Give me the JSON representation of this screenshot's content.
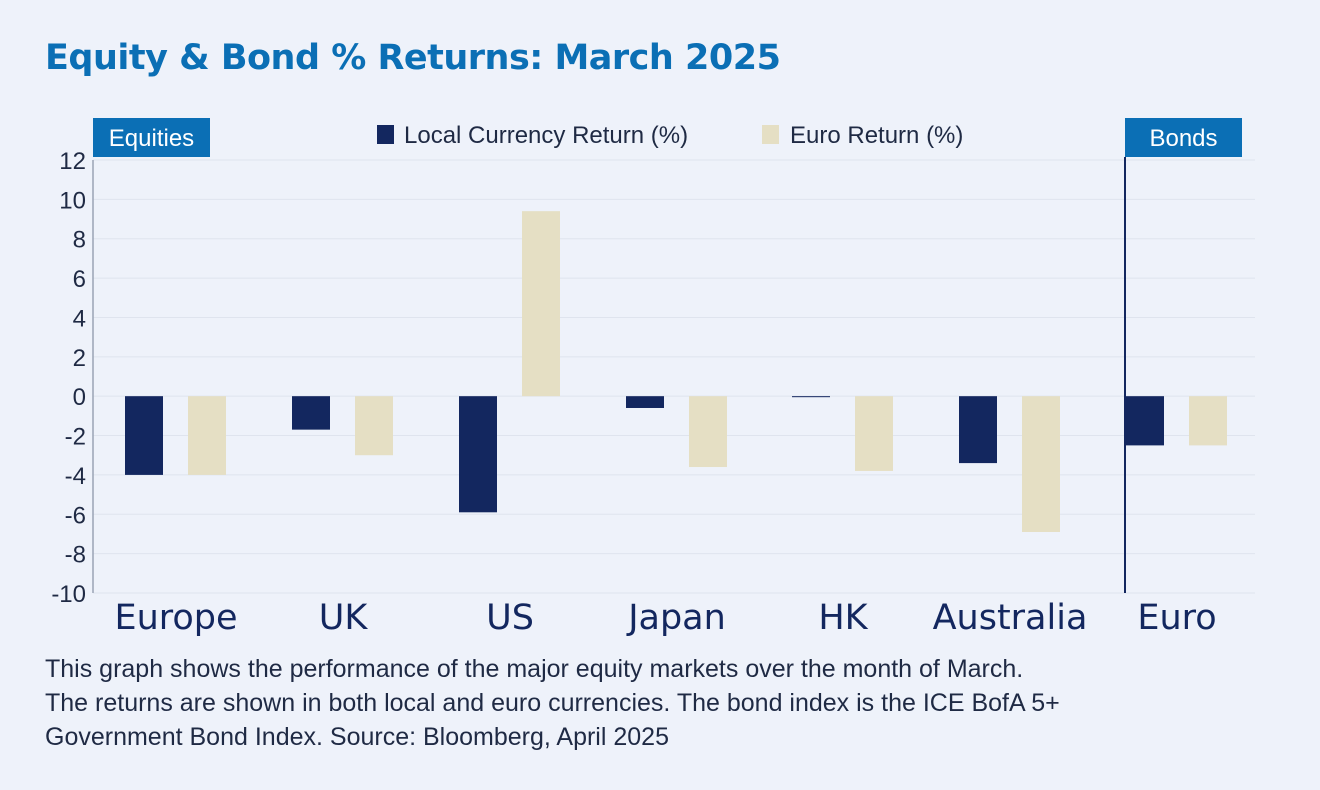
{
  "title": "Equity & Bond % Returns: March 2025",
  "caption_lines": [
    "This graph shows the performance of the major equity markets over the month of March.",
    "The returns are shown in both local and euro currencies. The bond index is the ICE BofA 5+",
    "Government Bond Index. Source: Bloomberg, April 2025"
  ],
  "colors": {
    "local": "#13275f",
    "euro": "#e5dfc4",
    "accent": "#0b6fb5",
    "grid": "#dfe4ee",
    "background": "#eef2fa"
  },
  "chart_data": {
    "type": "bar",
    "title": "Equity & Bond % Returns: March 2025",
    "xlabel": "",
    "ylabel": "",
    "categories": [
      "Europe",
      "UK",
      "US",
      "Japan",
      "HK",
      "Australia",
      "Euro"
    ],
    "series": [
      {
        "name": "Local Currency Return (%)",
        "values": [
          -4.0,
          -1.7,
          -5.9,
          -0.6,
          -0.05,
          -3.4,
          -2.5
        ]
      },
      {
        "name": "Euro Return (%)",
        "values": [
          -4.0,
          -3.0,
          9.4,
          -3.6,
          -3.8,
          -6.9,
          -2.5
        ]
      }
    ],
    "ylim": [
      -10,
      12
    ],
    "yticks": [
      12,
      10,
      8,
      6,
      4,
      2,
      0,
      -2,
      -4,
      -6,
      -8,
      -10
    ],
    "grid": true,
    "legend": "top-center",
    "section_labels": {
      "left": "Equities",
      "right": "Bonds"
    }
  }
}
